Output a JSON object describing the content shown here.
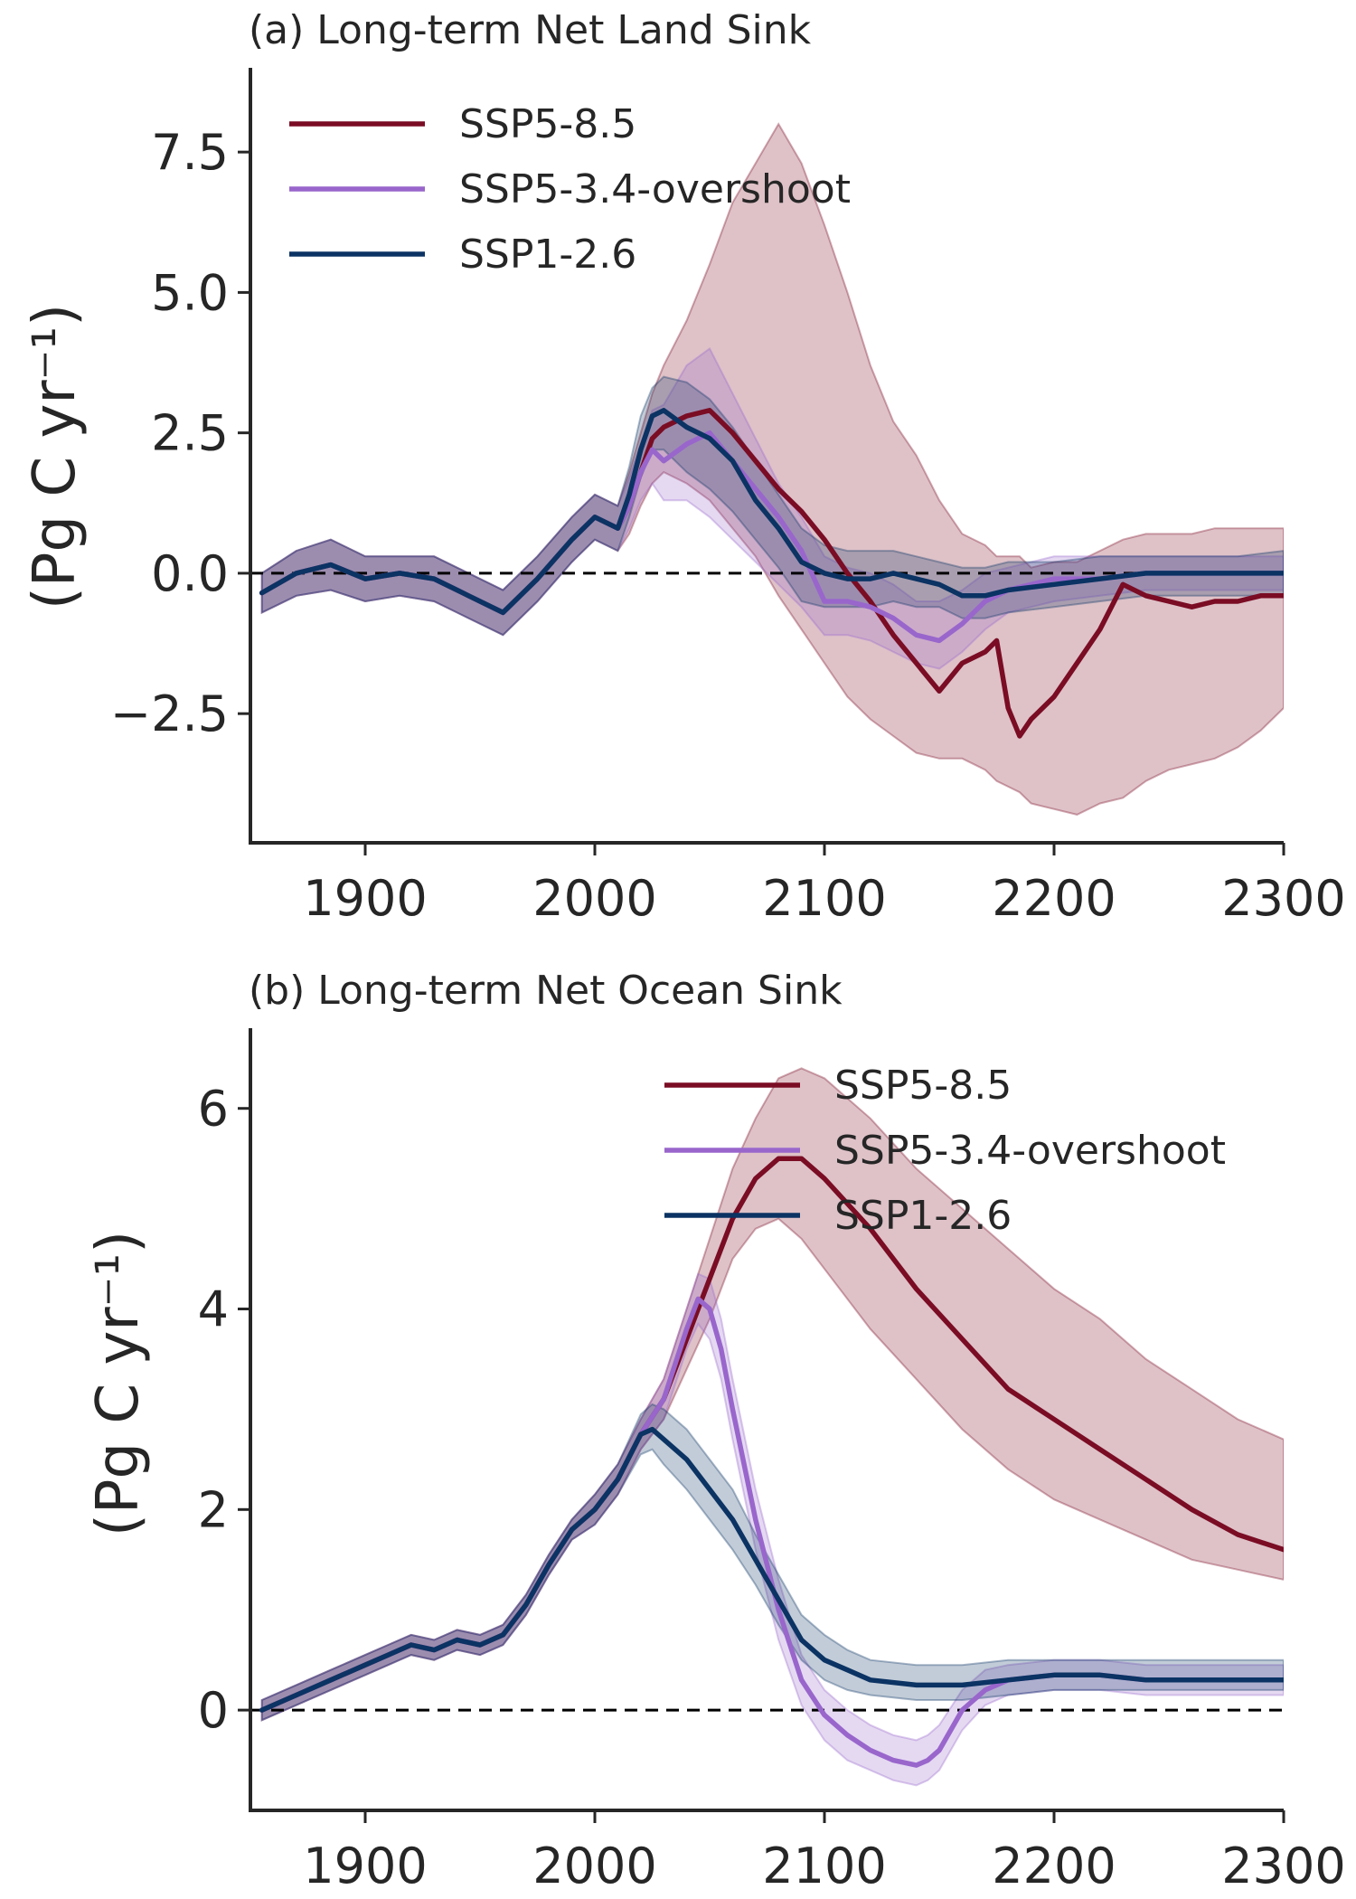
{
  "figure": {
    "colors": {
      "SSP5-8.5": "#7a0c24",
      "SSP5-3.4-overshoot": "#9966cc",
      "SSP1-2.6": "#0b3363",
      "band_alpha": 0.25,
      "axis": "#262626"
    }
  },
  "chart_data": [
    {
      "type": "line",
      "title": "(a) Long-term Net Land Sink",
      "xlabel": "",
      "ylabel": "(Pg C yr⁻¹)",
      "xlim": [
        1850,
        2300
      ],
      "ylim": [
        -4.8,
        9.0
      ],
      "xticks": [
        1900,
        2000,
        2100,
        2200,
        2300
      ],
      "xtick_labels": [
        "1900",
        "2000",
        "2100",
        "2200",
        "2300"
      ],
      "yticks": [
        -2.5,
        0.0,
        2.5,
        5.0,
        7.5
      ],
      "ytick_labels": [
        "−2.5",
        "0.0",
        "2.5",
        "5.0",
        "7.5"
      ],
      "grid": false,
      "reference_line": {
        "y": 0,
        "style": "dashed"
      },
      "legend_position": "upper-left",
      "series": [
        {
          "name": "SSP5-8.5",
          "x": [
            1855,
            1870,
            1885,
            1900,
            1915,
            1930,
            1945,
            1960,
            1975,
            1990,
            2000,
            2010,
            2015,
            2020,
            2025,
            2030,
            2040,
            2050,
            2060,
            2070,
            2080,
            2090,
            2100,
            2110,
            2120,
            2130,
            2140,
            2150,
            2160,
            2170,
            2175,
            2180,
            2185,
            2190,
            2200,
            2210,
            2220,
            2230,
            2240,
            2250,
            2260,
            2270,
            2280,
            2290,
            2300
          ],
          "y": [
            -0.35,
            0.0,
            0.15,
            -0.1,
            0.0,
            -0.1,
            -0.4,
            -0.7,
            -0.1,
            0.6,
            1.0,
            0.8,
            1.2,
            1.8,
            2.4,
            2.6,
            2.8,
            2.9,
            2.5,
            2.0,
            1.5,
            1.1,
            0.6,
            0.0,
            -0.5,
            -1.1,
            -1.6,
            -2.1,
            -1.6,
            -1.4,
            -1.2,
            -2.4,
            -2.9,
            -2.6,
            -2.2,
            -1.6,
            -1.0,
            -0.2,
            -0.4,
            -0.5,
            -0.6,
            -0.5,
            -0.5,
            -0.4,
            -0.4
          ],
          "band_upper": [
            0.0,
            0.4,
            0.6,
            0.3,
            0.3,
            0.3,
            0.0,
            -0.3,
            0.3,
            1.0,
            1.4,
            1.2,
            1.8,
            2.5,
            3.2,
            3.7,
            4.5,
            5.5,
            6.6,
            7.3,
            8.0,
            7.3,
            6.2,
            5.0,
            3.7,
            2.7,
            2.1,
            1.3,
            0.7,
            0.5,
            0.3,
            0.3,
            0.3,
            0.1,
            0.2,
            0.2,
            0.4,
            0.6,
            0.7,
            0.7,
            0.7,
            0.8,
            0.8,
            0.8,
            0.8
          ],
          "band_lower": [
            -0.7,
            -0.4,
            -0.3,
            -0.5,
            -0.4,
            -0.5,
            -0.8,
            -1.1,
            -0.5,
            0.2,
            0.6,
            0.4,
            0.7,
            1.2,
            1.6,
            1.8,
            1.6,
            1.3,
            0.8,
            0.3,
            -0.4,
            -1.0,
            -1.6,
            -2.2,
            -2.6,
            -2.9,
            -3.2,
            -3.3,
            -3.3,
            -3.5,
            -3.7,
            -3.8,
            -3.9,
            -4.1,
            -4.2,
            -4.3,
            -4.1,
            -4.0,
            -3.7,
            -3.5,
            -3.4,
            -3.3,
            -3.1,
            -2.8,
            -2.4
          ]
        },
        {
          "name": "SSP5-3.4-overshoot",
          "x": [
            1855,
            1870,
            1885,
            1900,
            1915,
            1930,
            1945,
            1960,
            1975,
            1990,
            2000,
            2010,
            2015,
            2020,
            2025,
            2030,
            2040,
            2050,
            2060,
            2070,
            2080,
            2090,
            2100,
            2110,
            2120,
            2130,
            2140,
            2150,
            2160,
            2170,
            2180,
            2190,
            2200,
            2220,
            2240,
            2260,
            2280,
            2300
          ],
          "y": [
            -0.35,
            0.0,
            0.15,
            -0.1,
            0.0,
            -0.1,
            -0.4,
            -0.7,
            -0.1,
            0.6,
            1.0,
            0.8,
            1.2,
            1.8,
            2.2,
            2.0,
            2.3,
            2.5,
            2.0,
            1.5,
            1.0,
            0.4,
            -0.5,
            -0.5,
            -0.6,
            -0.8,
            -1.1,
            -1.2,
            -0.9,
            -0.5,
            -0.3,
            -0.2,
            -0.1,
            -0.1,
            0.0,
            0.0,
            0.0,
            0.0
          ],
          "band_upper": [
            0.0,
            0.4,
            0.6,
            0.3,
            0.3,
            0.3,
            0.0,
            -0.3,
            0.3,
            1.0,
            1.4,
            1.2,
            1.7,
            2.3,
            2.9,
            3.0,
            3.7,
            4.0,
            3.2,
            2.4,
            1.6,
            1.0,
            0.3,
            0.1,
            0.0,
            -0.2,
            -0.5,
            -0.5,
            -0.3,
            0.0,
            0.1,
            0.2,
            0.3,
            0.3,
            0.3,
            0.3,
            0.3,
            0.3
          ],
          "band_lower": [
            -0.7,
            -0.4,
            -0.3,
            -0.5,
            -0.4,
            -0.5,
            -0.8,
            -1.1,
            -0.5,
            0.2,
            0.6,
            0.4,
            0.8,
            1.3,
            1.6,
            1.3,
            1.3,
            1.0,
            0.6,
            0.2,
            -0.2,
            -0.6,
            -1.1,
            -1.1,
            -1.2,
            -1.4,
            -1.6,
            -1.7,
            -1.4,
            -1.0,
            -0.7,
            -0.6,
            -0.5,
            -0.4,
            -0.3,
            -0.3,
            -0.3,
            -0.3
          ]
        },
        {
          "name": "SSP1-2.6",
          "x": [
            1855,
            1870,
            1885,
            1900,
            1915,
            1930,
            1945,
            1960,
            1975,
            1990,
            2000,
            2010,
            2015,
            2020,
            2025,
            2030,
            2040,
            2050,
            2060,
            2070,
            2080,
            2090,
            2100,
            2110,
            2120,
            2130,
            2140,
            2150,
            2160,
            2170,
            2180,
            2200,
            2220,
            2240,
            2260,
            2280,
            2300
          ],
          "y": [
            -0.35,
            0.0,
            0.15,
            -0.1,
            0.0,
            -0.1,
            -0.4,
            -0.7,
            -0.1,
            0.6,
            1.0,
            0.8,
            1.4,
            2.2,
            2.8,
            2.9,
            2.6,
            2.4,
            2.0,
            1.3,
            0.8,
            0.2,
            0.0,
            -0.1,
            -0.1,
            0.0,
            -0.1,
            -0.2,
            -0.4,
            -0.4,
            -0.3,
            -0.2,
            -0.1,
            0.0,
            0.0,
            0.0,
            0.0
          ],
          "band_upper": [
            0.0,
            0.4,
            0.6,
            0.3,
            0.3,
            0.3,
            0.0,
            -0.3,
            0.3,
            1.0,
            1.4,
            1.2,
            1.9,
            2.8,
            3.3,
            3.5,
            3.4,
            3.1,
            2.6,
            2.0,
            1.4,
            0.8,
            0.5,
            0.4,
            0.4,
            0.4,
            0.3,
            0.2,
            0.1,
            0.1,
            0.2,
            0.2,
            0.3,
            0.3,
            0.3,
            0.3,
            0.4
          ],
          "band_lower": [
            -0.7,
            -0.4,
            -0.3,
            -0.5,
            -0.4,
            -0.5,
            -0.8,
            -1.1,
            -0.5,
            0.2,
            0.6,
            0.4,
            1.0,
            1.7,
            2.2,
            2.2,
            1.8,
            1.5,
            1.1,
            0.6,
            0.1,
            -0.5,
            -0.6,
            -0.6,
            -0.6,
            -0.5,
            -0.6,
            -0.6,
            -0.8,
            -0.8,
            -0.7,
            -0.6,
            -0.5,
            -0.4,
            -0.4,
            -0.4,
            -0.4
          ]
        }
      ]
    },
    {
      "type": "line",
      "title": "(b) Long-term Net Ocean Sink",
      "xlabel": "",
      "ylabel": "(Pg C yr⁻¹)",
      "xlim": [
        1850,
        2300
      ],
      "ylim": [
        -1.0,
        6.8
      ],
      "xticks": [
        1900,
        2000,
        2100,
        2200,
        2300
      ],
      "xtick_labels": [
        "1900",
        "2000",
        "2100",
        "2200",
        "2300"
      ],
      "yticks": [
        0,
        2,
        4,
        6
      ],
      "ytick_labels": [
        "0",
        "2",
        "4",
        "6"
      ],
      "grid": false,
      "reference_line": {
        "y": 0,
        "style": "dashed"
      },
      "legend_position": "upper-center",
      "series": [
        {
          "name": "SSP5-8.5",
          "x": [
            1855,
            1870,
            1885,
            1900,
            1910,
            1920,
            1930,
            1940,
            1950,
            1960,
            1970,
            1980,
            1990,
            2000,
            2010,
            2020,
            2030,
            2040,
            2050,
            2060,
            2070,
            2080,
            2090,
            2100,
            2120,
            2140,
            2160,
            2180,
            2200,
            2220,
            2240,
            2260,
            2280,
            2300
          ],
          "y": [
            0.0,
            0.15,
            0.3,
            0.45,
            0.55,
            0.65,
            0.6,
            0.7,
            0.65,
            0.75,
            1.05,
            1.45,
            1.8,
            2.0,
            2.3,
            2.75,
            3.1,
            3.7,
            4.3,
            4.9,
            5.3,
            5.5,
            5.5,
            5.3,
            4.8,
            4.2,
            3.7,
            3.2,
            2.9,
            2.6,
            2.3,
            2.0,
            1.75,
            1.6
          ],
          "band_upper": [
            0.1,
            0.25,
            0.4,
            0.55,
            0.65,
            0.75,
            0.7,
            0.8,
            0.75,
            0.85,
            1.15,
            1.55,
            1.9,
            2.15,
            2.45,
            2.9,
            3.3,
            4.0,
            4.7,
            5.4,
            5.9,
            6.3,
            6.4,
            6.3,
            5.9,
            5.4,
            5.0,
            4.6,
            4.2,
            3.9,
            3.5,
            3.2,
            2.9,
            2.7
          ],
          "band_lower": [
            -0.1,
            0.05,
            0.2,
            0.35,
            0.45,
            0.55,
            0.5,
            0.6,
            0.55,
            0.65,
            0.95,
            1.35,
            1.7,
            1.85,
            2.15,
            2.6,
            2.9,
            3.4,
            3.9,
            4.5,
            4.8,
            4.9,
            4.7,
            4.4,
            3.8,
            3.3,
            2.8,
            2.4,
            2.1,
            1.9,
            1.7,
            1.5,
            1.4,
            1.3
          ]
        },
        {
          "name": "SSP5-3.4-overshoot",
          "x": [
            1855,
            1870,
            1885,
            1900,
            1910,
            1920,
            1930,
            1940,
            1950,
            1960,
            1970,
            1980,
            1990,
            2000,
            2010,
            2020,
            2030,
            2040,
            2045,
            2050,
            2055,
            2060,
            2070,
            2080,
            2090,
            2100,
            2110,
            2120,
            2130,
            2140,
            2145,
            2150,
            2160,
            2170,
            2180,
            2200,
            2220,
            2240,
            2260,
            2280,
            2300
          ],
          "y": [
            0.0,
            0.15,
            0.3,
            0.45,
            0.55,
            0.65,
            0.6,
            0.7,
            0.65,
            0.75,
            1.05,
            1.45,
            1.8,
            2.0,
            2.3,
            2.75,
            3.1,
            3.8,
            4.1,
            4.0,
            3.6,
            3.0,
            1.9,
            1.0,
            0.3,
            -0.05,
            -0.25,
            -0.4,
            -0.5,
            -0.55,
            -0.5,
            -0.4,
            0.0,
            0.2,
            0.3,
            0.35,
            0.35,
            0.3,
            0.3,
            0.3,
            0.3
          ],
          "band_upper": [
            0.1,
            0.25,
            0.4,
            0.55,
            0.65,
            0.75,
            0.7,
            0.8,
            0.75,
            0.85,
            1.15,
            1.55,
            1.9,
            2.15,
            2.45,
            2.9,
            3.3,
            4.0,
            4.35,
            4.3,
            3.9,
            3.3,
            2.2,
            1.3,
            0.55,
            0.2,
            0.0,
            -0.15,
            -0.25,
            -0.3,
            -0.25,
            -0.15,
            0.2,
            0.4,
            0.45,
            0.5,
            0.5,
            0.45,
            0.45,
            0.45,
            0.45
          ],
          "band_lower": [
            -0.1,
            0.05,
            0.2,
            0.35,
            0.45,
            0.55,
            0.5,
            0.6,
            0.55,
            0.65,
            0.95,
            1.35,
            1.7,
            1.85,
            2.15,
            2.6,
            2.9,
            3.6,
            3.85,
            3.7,
            3.3,
            2.7,
            1.6,
            0.7,
            0.05,
            -0.3,
            -0.5,
            -0.6,
            -0.7,
            -0.75,
            -0.7,
            -0.6,
            -0.2,
            0.05,
            0.15,
            0.2,
            0.2,
            0.15,
            0.15,
            0.15,
            0.15
          ]
        },
        {
          "name": "SSP1-2.6",
          "x": [
            1855,
            1870,
            1885,
            1900,
            1910,
            1920,
            1930,
            1940,
            1950,
            1960,
            1970,
            1980,
            1990,
            2000,
            2010,
            2020,
            2025,
            2030,
            2040,
            2050,
            2060,
            2070,
            2080,
            2090,
            2100,
            2110,
            2120,
            2140,
            2160,
            2180,
            2200,
            2220,
            2240,
            2260,
            2280,
            2300
          ],
          "y": [
            0.0,
            0.15,
            0.3,
            0.45,
            0.55,
            0.65,
            0.6,
            0.7,
            0.65,
            0.75,
            1.05,
            1.45,
            1.8,
            2.0,
            2.3,
            2.75,
            2.8,
            2.7,
            2.5,
            2.2,
            1.9,
            1.5,
            1.1,
            0.7,
            0.5,
            0.4,
            0.3,
            0.25,
            0.25,
            0.3,
            0.35,
            0.35,
            0.3,
            0.3,
            0.3,
            0.3
          ],
          "band_upper": [
            0.1,
            0.25,
            0.4,
            0.55,
            0.65,
            0.75,
            0.7,
            0.8,
            0.75,
            0.85,
            1.15,
            1.55,
            1.9,
            2.15,
            2.45,
            2.95,
            3.05,
            3.0,
            2.8,
            2.5,
            2.2,
            1.75,
            1.35,
            0.95,
            0.75,
            0.6,
            0.5,
            0.45,
            0.45,
            0.5,
            0.5,
            0.5,
            0.5,
            0.5,
            0.5,
            0.5
          ],
          "band_lower": [
            -0.1,
            0.05,
            0.2,
            0.35,
            0.45,
            0.55,
            0.5,
            0.6,
            0.55,
            0.65,
            0.95,
            1.35,
            1.7,
            1.85,
            2.15,
            2.55,
            2.6,
            2.45,
            2.2,
            1.9,
            1.6,
            1.25,
            0.85,
            0.5,
            0.3,
            0.2,
            0.15,
            0.1,
            0.1,
            0.15,
            0.2,
            0.2,
            0.2,
            0.2,
            0.2,
            0.2
          ]
        }
      ]
    }
  ]
}
